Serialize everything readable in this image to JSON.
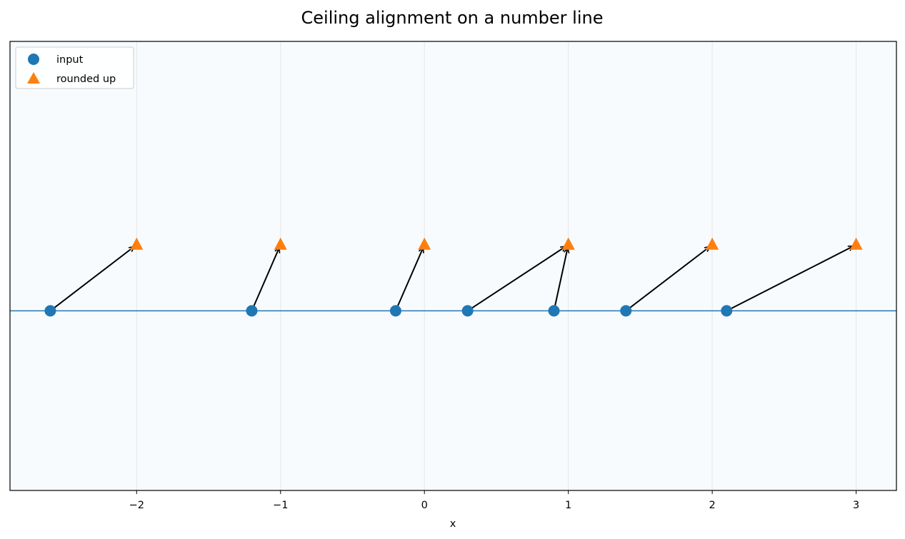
{
  "chart_data": {
    "type": "scatter",
    "title": "Ceiling alignment on a number line",
    "xlabel": "x",
    "ylabel": "",
    "xlim": [
      -2.88,
      3.28
    ],
    "ylim": [
      -1.25,
      1.875
    ],
    "xticks": [
      -2,
      -1,
      0,
      1,
      2,
      3
    ],
    "xtick_labels": [
      "−2",
      "−1",
      "0",
      "1",
      "2",
      "3"
    ],
    "grid": "vertical",
    "legend_position": "upper-left",
    "number_line_y": 0,
    "series": [
      {
        "name": "input",
        "marker": "circle",
        "color": "#1f77b4",
        "x": [
          -2.6,
          -1.2,
          -0.2,
          0.3,
          0.9,
          1.4,
          2.1
        ],
        "y": [
          0,
          0,
          0,
          0,
          0,
          0,
          0
        ]
      },
      {
        "name": "rounded up",
        "marker": "triangle",
        "color": "#ff7f0e",
        "x": [
          -2,
          -1,
          0,
          1,
          1,
          2,
          3
        ],
        "y": [
          0.46,
          0.46,
          0.46,
          0.46,
          0.46,
          0.46,
          0.46
        ]
      }
    ],
    "arrows": [
      {
        "from": [
          -2.6,
          0
        ],
        "to": [
          -2,
          0.46
        ]
      },
      {
        "from": [
          -1.2,
          0
        ],
        "to": [
          -1,
          0.46
        ]
      },
      {
        "from": [
          -0.2,
          0
        ],
        "to": [
          0,
          0.46
        ]
      },
      {
        "from": [
          0.3,
          0
        ],
        "to": [
          1,
          0.46
        ]
      },
      {
        "from": [
          0.9,
          0
        ],
        "to": [
          1,
          0.46
        ]
      },
      {
        "from": [
          1.4,
          0
        ],
        "to": [
          2,
          0.46
        ]
      },
      {
        "from": [
          2.1,
          0
        ],
        "to": [
          3,
          0.46
        ]
      }
    ],
    "colors": {
      "plot_background": "#f8fbfe",
      "number_line": "#1f77b4",
      "grid": "#e3e6ea",
      "arrow": "#000000"
    }
  }
}
